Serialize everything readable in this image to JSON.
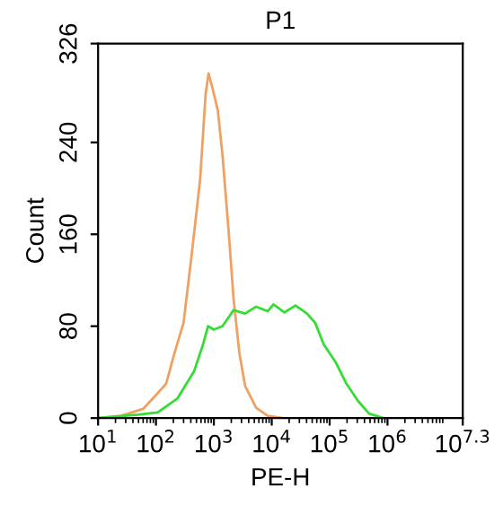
{
  "chart_data": {
    "type": "line",
    "title": "P1",
    "xlabel": "PE-H",
    "ylabel": "Count",
    "log": "x",
    "xlim": [
      10,
      19952623
    ],
    "xticks": [
      {
        "value": 10,
        "label": "10$^{1}$"
      },
      {
        "value": 100,
        "label": "10$^{2}$"
      },
      {
        "value": 1000,
        "label": "10$^{3}$"
      },
      {
        "value": 10000,
        "label": "10$^{4}$"
      },
      {
        "value": 100000,
        "label": "10$^{5}$"
      },
      {
        "value": 1000000,
        "label": "10$^{6}$"
      },
      {
        "value": 19952623,
        "label": "10$^{7.3}$"
      }
    ],
    "ylim": [
      0,
      326
    ],
    "yticks": [
      0,
      80,
      160,
      240,
      326
    ],
    "grid": false,
    "legend": false,
    "marker": "none",
    "line_style": "solid",
    "series": [
      {
        "color": "#f0a060",
        "x": [
          10,
          25,
          60,
          100,
          150,
          210,
          300,
          420,
          580,
          720,
          810,
          950,
          1170,
          1410,
          1780,
          2190,
          2750,
          3470,
          5370,
          8510,
          15800
        ],
        "values": [
          0,
          2,
          8,
          20,
          30,
          57,
          83,
          145,
          208,
          282,
          300,
          287,
          268,
          229,
          166,
          104,
          57,
          28,
          9,
          2,
          0
        ]
      },
      {
        "color": "#33dd33",
        "x": [
          10,
          49,
          107,
          234,
          457,
          631,
          794,
          1000,
          1410,
          2190,
          3470,
          5370,
          8510,
          10700,
          16600,
          25700,
          40700,
          56200,
          79400,
          126000,
          195000,
          309000,
          479000,
          851000
        ],
        "values": [
          0,
          3,
          5,
          17,
          41,
          62,
          80,
          77,
          80,
          94,
          91,
          97,
          93,
          99,
          92,
          98,
          91,
          83,
          64,
          49,
          30,
          15,
          4,
          0
        ]
      }
    ]
  }
}
